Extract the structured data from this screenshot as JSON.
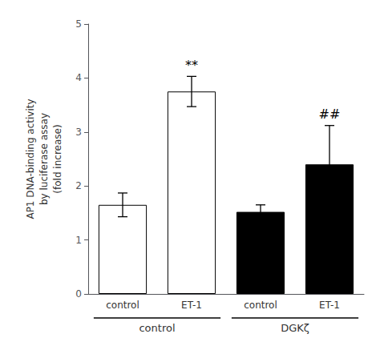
{
  "chart_data": {
    "type": "bar",
    "ylabel": "AP1 DNA-binding activity\nby luciferase assay\n(fold increase)",
    "categories": [
      "control",
      "ET-1",
      "control",
      "ET-1"
    ],
    "groups": [
      "control",
      "control",
      "DGKζ",
      "DGKζ"
    ],
    "values": [
      1.65,
      3.75,
      1.52,
      2.4
    ],
    "errors": [
      0.22,
      0.28,
      0.13,
      0.72
    ],
    "colors": [
      "white",
      "white",
      "black",
      "black"
    ],
    "annotations": [
      {
        "index": 1,
        "text": "**"
      },
      {
        "index": 3,
        "text": "##"
      }
    ],
    "ylim": [
      0,
      5
    ],
    "yticks": [
      0,
      1,
      2,
      3,
      4,
      5
    ],
    "grid": false
  }
}
